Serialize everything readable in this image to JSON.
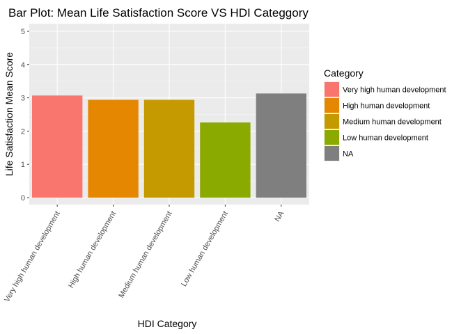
{
  "chart_data": {
    "type": "bar",
    "title": "Bar Plot: Mean Life Satisfaction Score VS HDI Categgory",
    "xlabel": "HDI Category",
    "ylabel": "Life Satisfaction Mean Score",
    "ylim": [
      0,
      5
    ],
    "yticks": [
      "0",
      "1",
      "2",
      "3",
      "4",
      "5"
    ],
    "categories": [
      "Very high human development",
      "High human development",
      "Medium human development",
      "Low human development",
      "NA"
    ],
    "values": [
      3.07,
      2.94,
      2.94,
      2.26,
      3.13
    ],
    "colors": [
      "#F8766D",
      "#E58700",
      "#C49A00",
      "#8BAA00",
      "#7F7F7F"
    ],
    "panel_background": "#EBEBEB",
    "grid": true,
    "legend": {
      "title": "Category",
      "position": "right",
      "entries": [
        "Very high human development",
        "High human development",
        "Medium human development",
        "Low human development",
        "NA"
      ]
    }
  }
}
